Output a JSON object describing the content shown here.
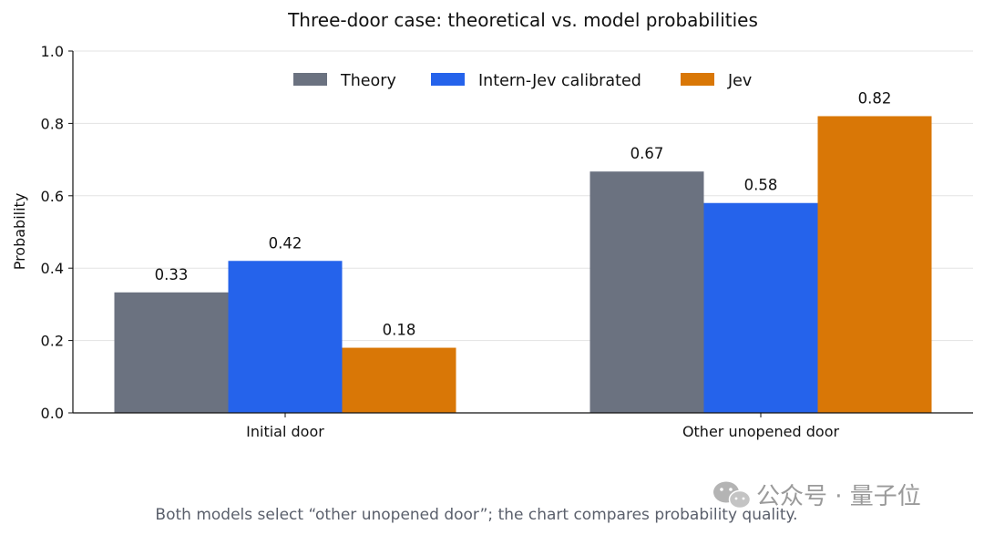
{
  "chart_data": {
    "type": "bar",
    "title": "Three-door case: theoretical vs. model probabilities",
    "xlabel": "",
    "ylabel": "Probability",
    "ylim": [
      0,
      1.0
    ],
    "yticks": [
      0.0,
      0.2,
      0.4,
      0.6,
      0.8,
      1.0
    ],
    "ytick_labels": [
      "0.0",
      "0.2",
      "0.4",
      "0.6",
      "0.8",
      "1.0"
    ],
    "categories": [
      "Initial door",
      "Other unopened door"
    ],
    "series": [
      {
        "name": "Theory",
        "color": "#6b7280",
        "values": [
          0.333,
          0.667
        ],
        "labels": [
          "0.33",
          "0.67"
        ]
      },
      {
        "name": "Intern-Jev calibrated",
        "color": "#2563eb",
        "values": [
          0.42,
          0.58
        ],
        "labels": [
          "0.42",
          "0.58"
        ]
      },
      {
        "name": "Jev",
        "color": "#d97706",
        "values": [
          0.18,
          0.82
        ],
        "labels": [
          "0.18",
          "0.82"
        ]
      }
    ],
    "grid": "horizontal",
    "legend": "top-center",
    "caption": "Both models select “other unopened door”; the chart compares probability quality."
  },
  "watermark": {
    "text": "公众号 · 量子位",
    "icon": "wechat-icon"
  }
}
